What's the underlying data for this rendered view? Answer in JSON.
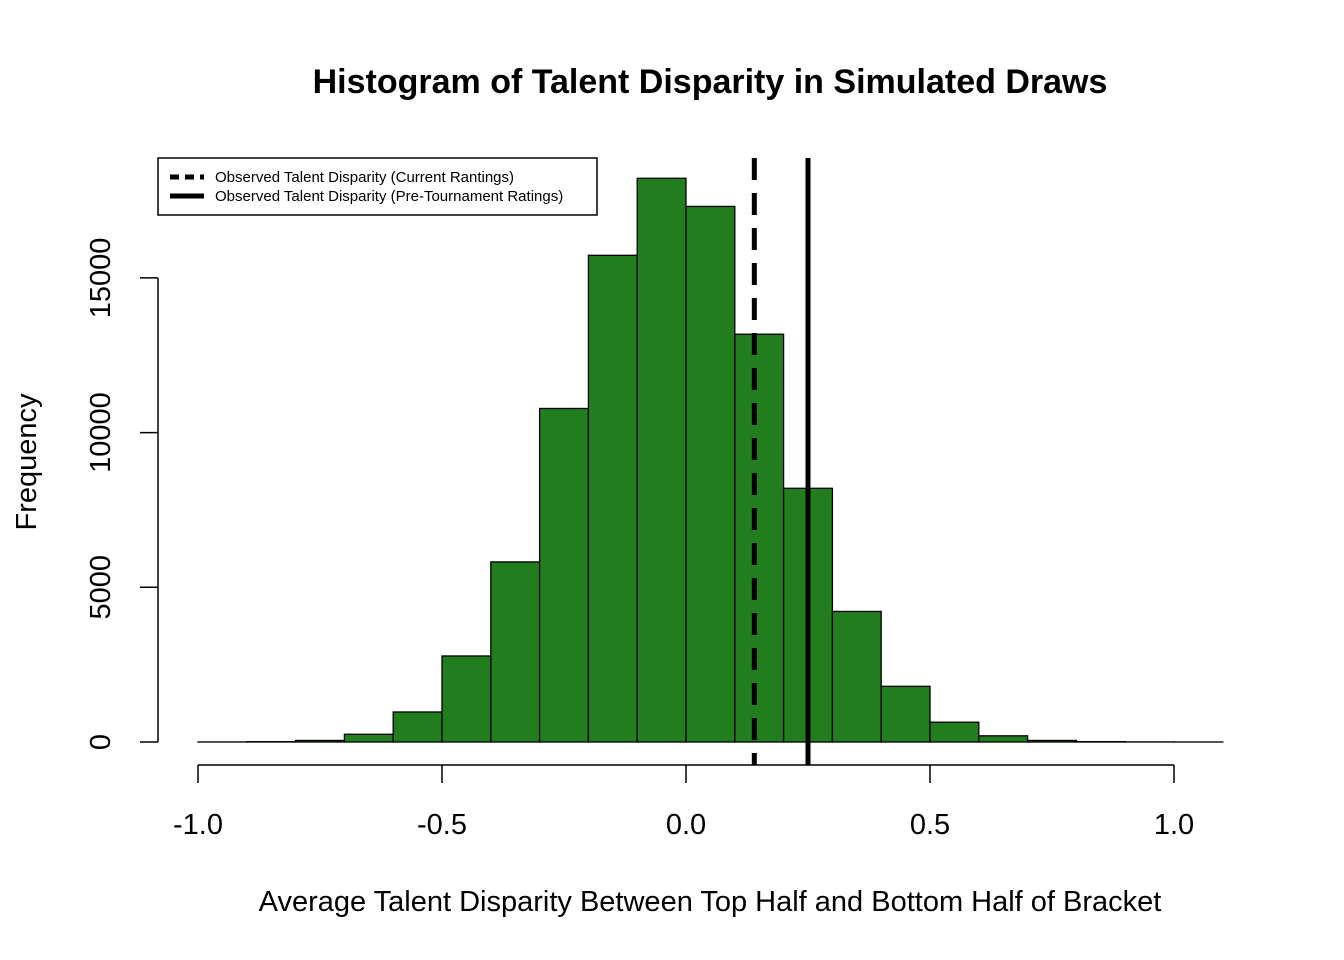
{
  "chart_data": {
    "type": "histogram",
    "title": "Histogram of Talent Disparity in Simulated Draws",
    "xlabel": "Average Talent Disparity Between Top Half and Bottom Half of Bracket",
    "ylabel": "Frequency",
    "xlim": [
      -1.0,
      1.0
    ],
    "ylim": [
      0,
      18500
    ],
    "x_ticks": [
      "-1.0",
      "-0.5",
      "0.0",
      "0.5",
      "1.0"
    ],
    "y_ticks": [
      "0",
      "5000",
      "10000",
      "15000"
    ],
    "bar_color": "#217d1e",
    "bins": [
      {
        "from": -1.0,
        "to": -0.9,
        "count": 2
      },
      {
        "from": -0.9,
        "to": -0.8,
        "count": 10
      },
      {
        "from": -0.8,
        "to": -0.7,
        "count": 50
      },
      {
        "from": -0.7,
        "to": -0.6,
        "count": 250
      },
      {
        "from": -0.6,
        "to": -0.5,
        "count": 970
      },
      {
        "from": -0.5,
        "to": -0.4,
        "count": 2780
      },
      {
        "from": -0.4,
        "to": -0.3,
        "count": 5820
      },
      {
        "from": -0.3,
        "to": -0.2,
        "count": 10780
      },
      {
        "from": -0.2,
        "to": -0.1,
        "count": 15730
      },
      {
        "from": -0.1,
        "to": 0.0,
        "count": 18220
      },
      {
        "from": 0.0,
        "to": 0.1,
        "count": 17310
      },
      {
        "from": 0.1,
        "to": 0.2,
        "count": 13180
      },
      {
        "from": 0.2,
        "to": 0.3,
        "count": 8200
      },
      {
        "from": 0.3,
        "to": 0.4,
        "count": 4220
      },
      {
        "from": 0.4,
        "to": 0.5,
        "count": 1800
      },
      {
        "from": 0.5,
        "to": 0.6,
        "count": 640
      },
      {
        "from": 0.6,
        "to": 0.7,
        "count": 200
      },
      {
        "from": 0.7,
        "to": 0.8,
        "count": 50
      },
      {
        "from": 0.8,
        "to": 0.9,
        "count": 12
      },
      {
        "from": 0.9,
        "to": 1.0,
        "count": 3
      },
      {
        "from": 1.0,
        "to": 1.1,
        "count": 1
      }
    ],
    "reference_lines": [
      {
        "name": "Observed Talent Disparity (Current Rantings)",
        "x": 0.14,
        "style": "dashed"
      },
      {
        "name": "Observed Talent Disparity (Pre-Tournament Ratings)",
        "x": 0.25,
        "style": "solid"
      }
    ],
    "legend_position": "top-left",
    "grid": false
  }
}
